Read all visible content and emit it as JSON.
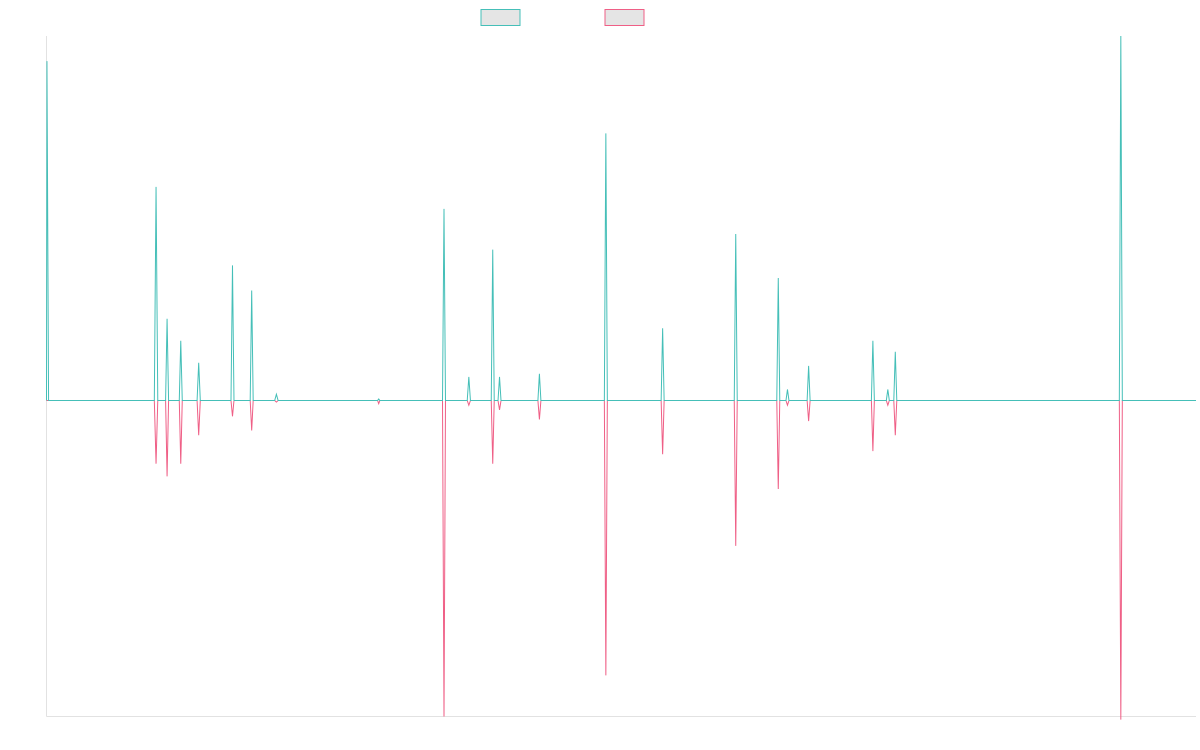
{
  "chart_data": {
    "type": "line",
    "title": "",
    "xlabel": "",
    "ylabel": "",
    "grid": false,
    "legend_position": "top-center",
    "colors": {
      "positive": "#45bfb8",
      "negative": "#ef5f86",
      "legend_fill": "#e5e5e5",
      "axis": "#e2e2e2"
    },
    "x_range": [
      0,
      1000
    ],
    "ylim": [
      -1.0,
      1.16
    ],
    "series": [
      {
        "key": "positive",
        "points": [
          [
            0,
            0
          ],
          [
            0.4,
            1.08
          ],
          [
            1.8,
            0
          ],
          [
            93.8,
            0
          ],
          [
            95.3,
            0.68
          ],
          [
            96.8,
            0
          ],
          [
            103.6,
            0
          ],
          [
            104.9,
            0.26
          ],
          [
            106.2,
            0
          ],
          [
            115.5,
            0
          ],
          [
            116.8,
            0.19
          ],
          [
            118.1,
            0
          ],
          [
            131,
            0
          ],
          [
            132.4,
            0.12
          ],
          [
            133.8,
            0
          ],
          [
            160.5,
            0
          ],
          [
            161.8,
            0.43
          ],
          [
            163.1,
            0
          ],
          [
            177.2,
            0
          ],
          [
            178.5,
            0.35
          ],
          [
            179.8,
            0
          ],
          [
            198.5,
            0
          ],
          [
            200,
            0.02
          ],
          [
            201.5,
            0
          ],
          [
            288,
            0
          ],
          [
            289,
            0.005
          ],
          [
            290,
            0
          ],
          [
            344.5,
            0
          ],
          [
            345.8,
            0.61
          ],
          [
            347.1,
            0
          ],
          [
            366,
            0
          ],
          [
            367.4,
            0.075
          ],
          [
            368.8,
            0
          ],
          [
            386.9,
            0
          ],
          [
            388.2,
            0.48
          ],
          [
            389.5,
            0
          ],
          [
            392.8,
            0
          ],
          [
            394.1,
            0.075
          ],
          [
            395.4,
            0
          ],
          [
            427.5,
            0
          ],
          [
            428.8,
            0.085
          ],
          [
            430.1,
            0
          ],
          [
            485.3,
            0
          ],
          [
            486.6,
            0.85
          ],
          [
            487.9,
            0
          ],
          [
            534.7,
            0
          ],
          [
            536,
            0.23
          ],
          [
            537.3,
            0
          ],
          [
            598.3,
            0
          ],
          [
            599.6,
            0.53
          ],
          [
            600.9,
            0
          ],
          [
            635.3,
            0
          ],
          [
            636.6,
            0.39
          ],
          [
            637.9,
            0
          ],
          [
            643.3,
            0
          ],
          [
            644.6,
            0.035
          ],
          [
            645.9,
            0
          ],
          [
            661.7,
            0
          ],
          [
            663,
            0.11
          ],
          [
            664.3,
            0
          ],
          [
            717.6,
            0
          ],
          [
            718.9,
            0.19
          ],
          [
            720.2,
            0
          ],
          [
            730.6,
            0
          ],
          [
            731.9,
            0.035
          ],
          [
            733.2,
            0
          ],
          [
            737.1,
            0
          ],
          [
            738.4,
            0.155
          ],
          [
            739.7,
            0
          ],
          [
            933.3,
            0
          ],
          [
            934.6,
            1.16
          ],
          [
            935.9,
            0
          ],
          [
            1000,
            0
          ]
        ]
      },
      {
        "key": "negative",
        "points": [
          [
            0,
            0
          ],
          [
            93.8,
            0
          ],
          [
            95.3,
            -0.2
          ],
          [
            96.8,
            0
          ],
          [
            103.6,
            0
          ],
          [
            104.9,
            -0.24
          ],
          [
            106.2,
            0
          ],
          [
            115.5,
            0
          ],
          [
            116.8,
            -0.2
          ],
          [
            118.1,
            0
          ],
          [
            131,
            0
          ],
          [
            132.4,
            -0.11
          ],
          [
            133.8,
            0
          ],
          [
            160.5,
            0
          ],
          [
            161.8,
            -0.05
          ],
          [
            163.1,
            0
          ],
          [
            177.2,
            0
          ],
          [
            178.5,
            -0.095
          ],
          [
            179.8,
            0
          ],
          [
            198.5,
            0
          ],
          [
            200,
            -0.005
          ],
          [
            201.5,
            0
          ],
          [
            288,
            0
          ],
          [
            289,
            -0.01
          ],
          [
            290,
            0
          ],
          [
            344.5,
            0
          ],
          [
            345.8,
            -1.0
          ],
          [
            347.1,
            0
          ],
          [
            366,
            0
          ],
          [
            367.4,
            -0.015
          ],
          [
            368.8,
            0
          ],
          [
            386.9,
            0
          ],
          [
            388.2,
            -0.2
          ],
          [
            389.5,
            0
          ],
          [
            392.8,
            0
          ],
          [
            394.1,
            -0.03
          ],
          [
            395.4,
            0
          ],
          [
            427.5,
            0
          ],
          [
            428.8,
            -0.06
          ],
          [
            430.1,
            0
          ],
          [
            485.3,
            0
          ],
          [
            486.6,
            -0.87
          ],
          [
            487.9,
            0
          ],
          [
            534.7,
            0
          ],
          [
            536,
            -0.17
          ],
          [
            537.3,
            0
          ],
          [
            598.3,
            0
          ],
          [
            599.6,
            -0.46
          ],
          [
            600.9,
            0
          ],
          [
            635.3,
            0
          ],
          [
            636.6,
            -0.28
          ],
          [
            637.9,
            0
          ],
          [
            643.3,
            0
          ],
          [
            644.6,
            -0.015
          ],
          [
            645.9,
            0
          ],
          [
            661.7,
            0
          ],
          [
            663,
            -0.065
          ],
          [
            664.3,
            0
          ],
          [
            717.6,
            0
          ],
          [
            718.9,
            -0.16
          ],
          [
            720.2,
            0
          ],
          [
            730.6,
            0
          ],
          [
            731.9,
            -0.015
          ],
          [
            733.2,
            0
          ],
          [
            737.1,
            0
          ],
          [
            738.4,
            -0.11
          ],
          [
            739.7,
            0
          ],
          [
            933.3,
            0
          ],
          [
            934.6,
            -1.01
          ],
          [
            935.9,
            0
          ],
          [
            1000,
            0
          ]
        ]
      }
    ]
  }
}
